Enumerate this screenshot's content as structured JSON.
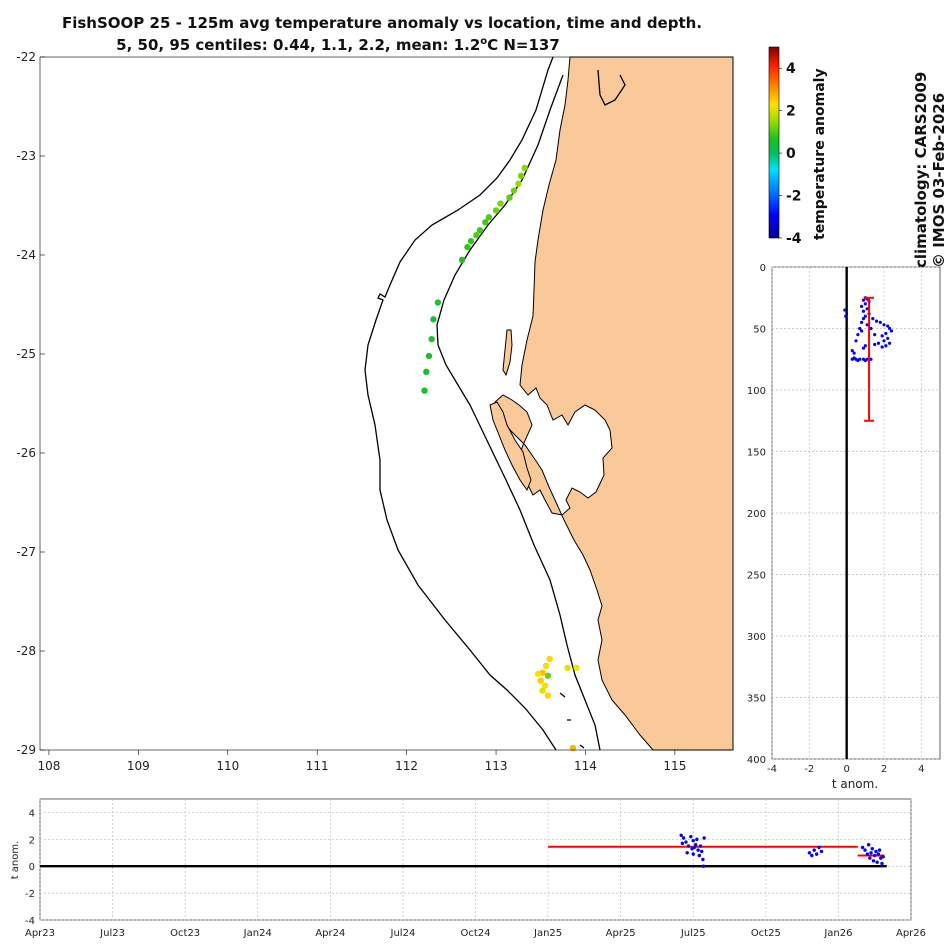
{
  "title_line1": "FishSOOP 25 - 125m avg temperature anomaly vs location, time and depth.",
  "title_line2_pre": "5, 50, 95 centiles: 0.44, 1.1, 2.2, mean: 1.2",
  "title_line2_sup": "o",
  "title_line2_post": "C N=137",
  "side_text_1": "climatology: CARS2009",
  "side_text_2": "© IMOS 03-Feb-2026",
  "colors": {
    "land": "#f9c99a",
    "mean_line": "#ff0000",
    "points": "#0000ff",
    "zero_line": "#000000"
  },
  "chart_data": [
    {
      "type": "scatter",
      "name": "map",
      "xlim": [
        107.9,
        115.65
      ],
      "ylim": [
        -29,
        -22
      ],
      "xticks": [
        "108",
        "109",
        "110",
        "111",
        "112",
        "113",
        "114",
        "115"
      ],
      "yticks": [
        "-22",
        "-23",
        "-24",
        "-25",
        "-26",
        "-27",
        "-28",
        "-29"
      ],
      "colorbar": {
        "label": "temperature anomaly",
        "range": [
          -4,
          5
        ],
        "ticks": [
          "4",
          "2",
          "0",
          "-2",
          "-4"
        ]
      },
      "points": [
        {
          "lon": 113.32,
          "lat": -23.12,
          "v": 1.4
        },
        {
          "lon": 113.28,
          "lat": -23.2,
          "v": 1.3
        },
        {
          "lon": 113.25,
          "lat": -23.28,
          "v": 1.5
        },
        {
          "lon": 113.2,
          "lat": -23.35,
          "v": 1.2
        },
        {
          "lon": 113.15,
          "lat": -23.42,
          "v": 1.1
        },
        {
          "lon": 113.05,
          "lat": -23.48,
          "v": 1.3
        },
        {
          "lon": 113.0,
          "lat": -23.55,
          "v": 1.2
        },
        {
          "lon": 112.92,
          "lat": -23.62,
          "v": 1.0
        },
        {
          "lon": 112.88,
          "lat": -23.67,
          "v": 0.9
        },
        {
          "lon": 112.82,
          "lat": -23.75,
          "v": 0.9
        },
        {
          "lon": 112.78,
          "lat": -23.8,
          "v": 1.0
        },
        {
          "lon": 112.72,
          "lat": -23.86,
          "v": 0.8
        },
        {
          "lon": 112.68,
          "lat": -23.92,
          "v": 0.8
        },
        {
          "lon": 112.62,
          "lat": -24.05,
          "v": 0.7
        },
        {
          "lon": 112.35,
          "lat": -24.48,
          "v": 0.6
        },
        {
          "lon": 112.3,
          "lat": -24.65,
          "v": 0.5
        },
        {
          "lon": 112.28,
          "lat": -24.85,
          "v": 0.6
        },
        {
          "lon": 112.25,
          "lat": -25.02,
          "v": 0.5
        },
        {
          "lon": 112.22,
          "lat": -25.18,
          "v": 0.5
        },
        {
          "lon": 112.2,
          "lat": -25.37,
          "v": 0.5
        },
        {
          "lon": 113.6,
          "lat": -28.08,
          "v": 2.4
        },
        {
          "lon": 113.56,
          "lat": -28.15,
          "v": 2.2
        },
        {
          "lon": 113.52,
          "lat": -28.22,
          "v": 2.6
        },
        {
          "lon": 113.47,
          "lat": -28.23,
          "v": 2.3
        },
        {
          "lon": 113.58,
          "lat": -28.25,
          "v": 1.2
        },
        {
          "lon": 113.5,
          "lat": -28.3,
          "v": 2.5
        },
        {
          "lon": 113.55,
          "lat": -28.35,
          "v": 2.2
        },
        {
          "lon": 113.52,
          "lat": -28.4,
          "v": 2.1
        },
        {
          "lon": 113.58,
          "lat": -28.45,
          "v": 2.4
        },
        {
          "lon": 113.8,
          "lat": -28.17,
          "v": 2.1
        },
        {
          "lon": 113.9,
          "lat": -28.17,
          "v": 2.3
        },
        {
          "lon": 113.86,
          "lat": -28.98,
          "v": 2.7
        }
      ]
    },
    {
      "type": "scatter",
      "name": "depth_profile",
      "xlabel": "t anom.",
      "xlim": [
        -4,
        5
      ],
      "ylim": [
        0,
        400
      ],
      "xticks": [
        "-4",
        "-2",
        "0",
        "2",
        "4"
      ],
      "yticks": [
        "0",
        "50",
        "100",
        "150",
        "200",
        "250",
        "300",
        "350",
        "400"
      ],
      "mean": 1.2,
      "mean_depth_range": [
        25,
        125
      ],
      "points": [
        [
          1.0,
          25
        ],
        [
          1.1,
          26
        ],
        [
          0.9,
          27
        ],
        [
          1.2,
          28
        ],
        [
          1.0,
          30
        ],
        [
          0.8,
          32
        ],
        [
          1.1,
          34
        ],
        [
          0.9,
          36
        ],
        [
          1.2,
          38
        ],
        [
          1.0,
          40
        ],
        [
          1.4,
          42
        ],
        [
          1.6,
          44
        ],
        [
          1.8,
          45
        ],
        [
          2.0,
          47
        ],
        [
          2.2,
          48
        ],
        [
          2.3,
          50
        ],
        [
          2.4,
          52
        ],
        [
          2.1,
          54
        ],
        [
          1.9,
          56
        ],
        [
          2.2,
          58
        ],
        [
          2.0,
          60
        ],
        [
          1.7,
          62
        ],
        [
          1.5,
          63
        ],
        [
          0.8,
          45
        ],
        [
          0.7,
          50
        ],
        [
          0.6,
          55
        ],
        [
          0.5,
          60
        ],
        [
          1.0,
          64
        ],
        [
          0.9,
          66
        ],
        [
          0.3,
          68
        ],
        [
          0.4,
          70
        ],
        [
          0.3,
          75
        ],
        [
          0.5,
          75
        ],
        [
          0.7,
          75
        ],
        [
          0.9,
          75
        ],
        [
          1.1,
          75
        ],
        [
          1.3,
          75
        ],
        [
          0.4,
          74
        ],
        [
          0.6,
          76
        ],
        [
          1.0,
          76
        ],
        [
          -0.1,
          35
        ],
        [
          -0.05,
          40
        ],
        [
          1.3,
          50
        ],
        [
          1.5,
          55
        ],
        [
          2.3,
          62
        ],
        [
          2.1,
          64
        ],
        [
          1.9,
          65
        ],
        [
          0.9,
          42
        ],
        [
          1.1,
          47
        ],
        [
          0.8,
          52
        ]
      ]
    },
    {
      "type": "scatter",
      "name": "time_series",
      "ylabel": "t anom.",
      "ylim": [
        -4,
        5
      ],
      "yticks": [
        "4",
        "2",
        "0",
        "-2",
        "-4"
      ],
      "xticks": [
        "Apr23",
        "Jul23",
        "Oct23",
        "Jan24",
        "Apr24",
        "Jul24",
        "Oct24",
        "Jan25",
        "Apr25",
        "Jul25",
        "Oct25",
        "Jan26",
        "Apr26"
      ],
      "x_range_months": [
        0,
        36
      ],
      "mean_segments": [
        {
          "x0": 21.0,
          "x1": 33.8,
          "y": 1.45
        },
        {
          "x0": 33.8,
          "x1": 34.9,
          "y": 0.8
        }
      ],
      "zero_line": {
        "x0": 0,
        "x1": 35.0
      },
      "points": [
        [
          26.5,
          2.3
        ],
        [
          26.6,
          2.1
        ],
        [
          26.7,
          1.8
        ],
        [
          26.8,
          1.5
        ],
        [
          26.9,
          2.2
        ],
        [
          27.0,
          1.9
        ],
        [
          27.05,
          1.4
        ],
        [
          27.1,
          1.6
        ],
        [
          27.15,
          2.0
        ],
        [
          27.2,
          1.2
        ],
        [
          27.25,
          0.8
        ],
        [
          27.3,
          1.5
        ],
        [
          27.35,
          1.1
        ],
        [
          27.4,
          0.5
        ],
        [
          27.42,
          0.0
        ],
        [
          27.45,
          2.1
        ],
        [
          26.55,
          1.7
        ],
        [
          26.75,
          1.0
        ],
        [
          26.95,
          1.3
        ],
        [
          27.0,
          0.9
        ],
        [
          31.8,
          1.0
        ],
        [
          31.9,
          0.8
        ],
        [
          32.0,
          1.2
        ],
        [
          32.1,
          0.9
        ],
        [
          32.2,
          1.4
        ],
        [
          32.3,
          1.1
        ],
        [
          34.0,
          1.4
        ],
        [
          34.1,
          1.2
        ],
        [
          34.2,
          0.9
        ],
        [
          34.25,
          1.6
        ],
        [
          34.3,
          0.6
        ],
        [
          34.35,
          1.0
        ],
        [
          34.4,
          1.3
        ],
        [
          34.45,
          0.4
        ],
        [
          34.5,
          0.8
        ],
        [
          34.55,
          1.1
        ],
        [
          34.6,
          0.3
        ],
        [
          34.65,
          0.9
        ],
        [
          34.7,
          1.2
        ],
        [
          34.75,
          0.6
        ],
        [
          34.8,
          0.2
        ],
        [
          34.85,
          0.7
        ]
      ]
    }
  ]
}
